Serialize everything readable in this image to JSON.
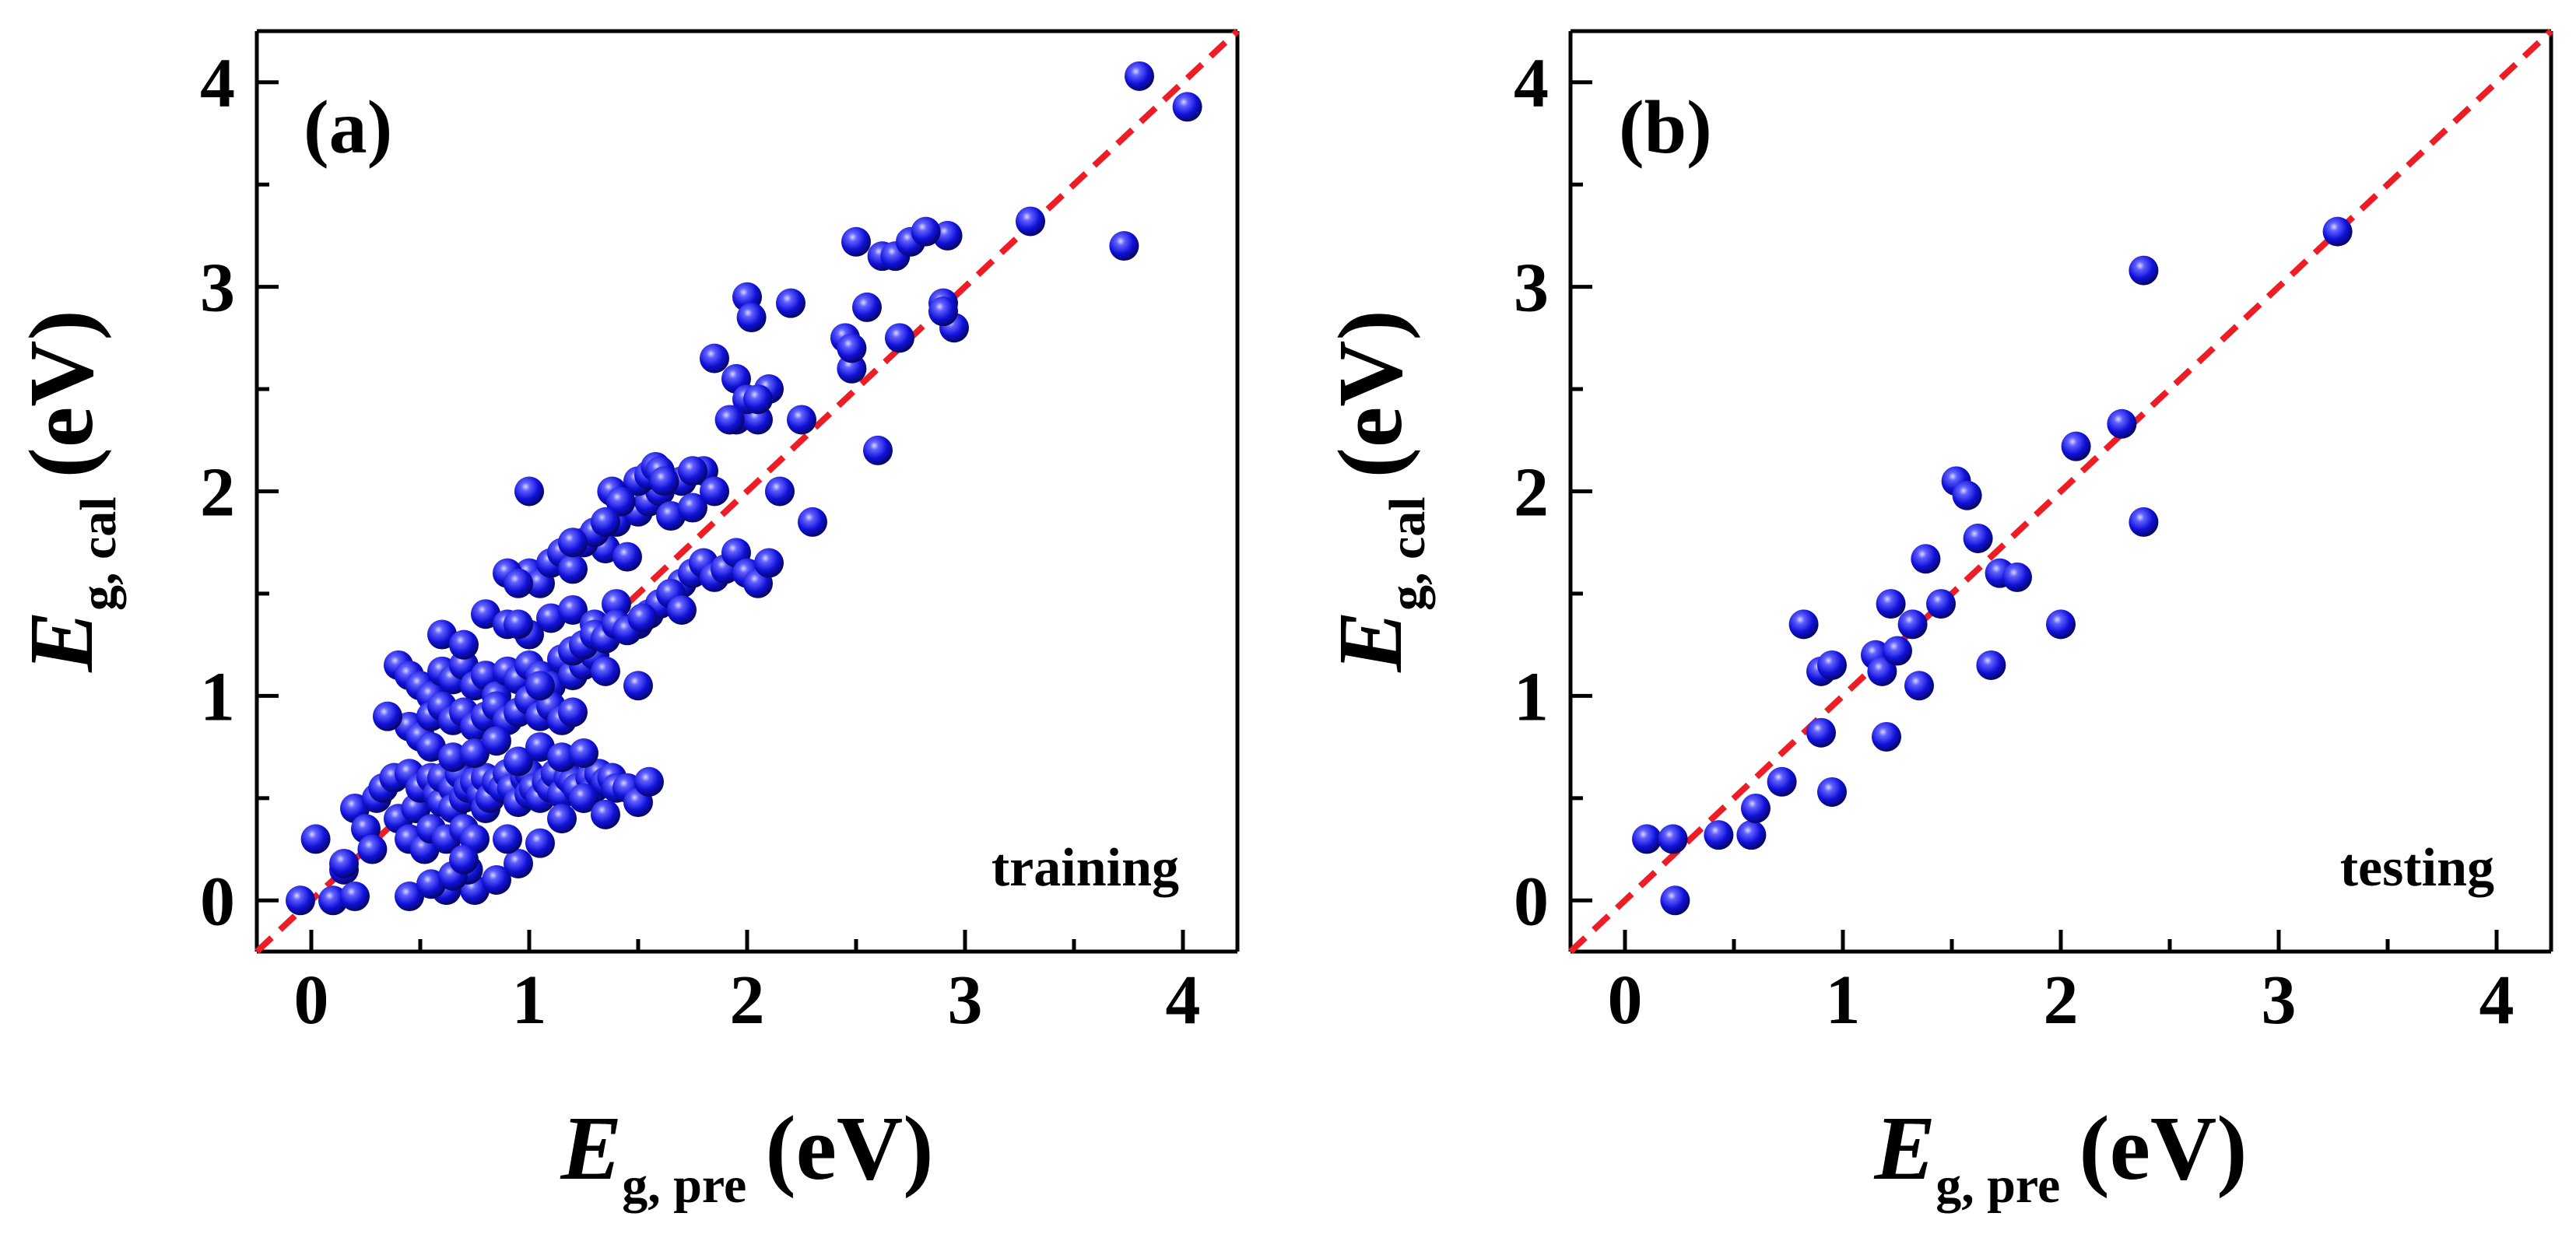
{
  "chart_data": [
    {
      "type": "scatter",
      "panel_label": "(a)",
      "annotation": "training",
      "xlabel": {
        "symbol": "E",
        "subscript": "g, pre",
        "unit": "(eV)"
      },
      "ylabel": {
        "symbol": "E",
        "subscript": "g, cal",
        "unit": "(eV)"
      },
      "xlim": [
        -0.25,
        4.25
      ],
      "ylim": [
        -0.25,
        4.25
      ],
      "xticks": [
        0,
        1,
        2,
        3,
        4
      ],
      "yticks": [
        0,
        1,
        2,
        3,
        4
      ],
      "reference_line": {
        "style": "dashed",
        "slope": 1,
        "intercept": 0
      },
      "colors": {
        "marker": "#1010d8",
        "marker_highlight": "#d8d8ff",
        "reference_line": "#ee1c24"
      },
      "series": [
        {
          "name": "training",
          "x": [
            -0.05,
            0.02,
            0.1,
            0.15,
            0.2,
            0.25,
            0.2,
            0.15,
            0.28,
            0.3,
            0.33,
            0.38,
            0.4,
            0.45,
            0.45,
            0.48,
            0.5,
            0.52,
            0.55,
            0.55,
            0.58,
            0.6,
            0.6,
            0.62,
            0.65,
            0.65,
            0.68,
            0.7,
            0.7,
            0.72,
            0.75,
            0.75,
            0.78,
            0.8,
            0.8,
            0.82,
            0.85,
            0.88,
            0.9,
            0.92,
            0.95,
            0.98,
            1.0,
            1.0,
            1.02,
            1.05,
            1.08,
            1.1,
            1.12,
            1.15,
            1.18,
            1.2,
            1.22,
            1.25,
            1.28,
            1.3,
            1.32,
            1.35,
            1.38,
            1.4,
            0.4,
            0.45,
            0.5,
            0.55,
            0.6,
            0.65,
            0.7,
            0.75,
            0.8,
            0.85,
            0.9,
            0.95,
            1.0,
            1.05,
            1.1,
            1.15,
            1.2,
            1.25,
            1.3,
            1.35,
            0.45,
            0.5,
            0.55,
            0.6,
            0.65,
            0.7,
            0.75,
            0.8,
            0.85,
            0.9,
            0.95,
            1.0,
            1.05,
            1.1,
            1.15,
            1.2,
            0.35,
            0.6,
            0.7,
            0.8,
            0.9,
            1.0,
            1.1,
            1.2,
            1.3,
            1.4,
            0.55,
            0.65,
            0.75,
            0.85,
            0.95,
            1.05,
            1.15,
            1.25,
            0.75,
            0.85,
            0.95,
            1.05,
            1.15,
            1.25,
            1.35,
            1.45,
            1.5,
            1.55,
            0.62,
            0.72,
            0.45,
            0.55,
            0.65,
            0.7,
            1.0,
            1.05,
            1.1,
            1.15,
            1.2,
            1.25,
            1.3,
            1.35,
            1.4,
            1.45,
            1.5,
            1.55,
            1.6,
            1.65,
            1.7,
            1.75,
            1.8,
            1.85,
            1.6,
            1.65,
            1.7,
            1.75,
            1.8,
            1.85,
            1.9,
            1.95,
            2.0,
            2.05,
            2.1,
            1.5,
            1.55,
            1.6,
            1.65,
            1.7,
            1.2,
            1.25,
            1.3,
            1.35,
            1.4,
            1.45,
            0.9,
            0.95,
            1.0,
            1.05,
            1.95,
            2.05,
            2.1,
            2.15,
            2.0,
            2.02,
            1.85,
            1.95,
            2.25,
            2.3,
            2.45,
            2.48,
            2.5,
            2.55,
            2.62,
            2.68,
            2.7,
            2.75,
            2.9,
            2.92,
            2.95,
            3.3,
            2.0,
            2.05,
            2.2,
            1.92,
            1.75,
            1.5,
            1.55,
            1.58,
            1.6,
            1.62,
            1.38,
            1.42,
            1.25,
            1.3,
            1.35,
            1.2,
            2.6,
            2.48,
            2.9,
            2.82,
            3.73,
            3.8,
            4.02,
            0.9,
            0.95,
            1.5,
            1.52
          ],
          "y": [
            0.0,
            0.3,
            0.0,
            0.15,
            0.45,
            0.35,
            0.02,
            0.18,
            0.25,
            0.5,
            0.55,
            0.6,
            0.4,
            0.62,
            0.3,
            0.45,
            0.55,
            0.25,
            0.6,
            0.35,
            0.52,
            0.48,
            0.6,
            0.3,
            0.55,
            0.45,
            0.62,
            0.35,
            0.5,
            0.55,
            0.3,
            0.58,
            0.52,
            0.6,
            0.45,
            0.5,
            0.58,
            0.55,
            0.62,
            0.55,
            0.48,
            0.6,
            0.62,
            0.52,
            0.55,
            0.5,
            0.58,
            0.55,
            0.62,
            0.52,
            0.6,
            0.58,
            0.55,
            0.5,
            0.6,
            0.55,
            0.62,
            0.58,
            0.6,
            0.55,
            1.15,
            1.1,
            1.05,
            1.0,
            1.12,
            1.08,
            1.15,
            1.05,
            1.1,
            1.0,
            1.12,
            1.08,
            1.15,
            1.1,
            1.05,
            1.18,
            1.1,
            1.15,
            1.2,
            1.12,
            0.85,
            0.8,
            0.9,
            0.95,
            0.88,
            0.92,
            0.85,
            0.9,
            0.95,
            0.88,
            0.92,
            0.98,
            0.9,
            0.95,
            0.88,
            0.92,
            0.9,
            1.3,
            1.25,
            1.4,
            1.35,
            1.3,
            1.38,
            1.42,
            1.35,
            1.45,
            0.75,
            0.7,
            0.72,
            0.78,
            0.68,
            0.75,
            0.7,
            0.72,
            0.05,
            0.1,
            0.18,
            0.28,
            0.4,
            0.5,
            0.42,
            0.55,
            0.48,
            0.58,
            0.05,
            0.15,
            0.02,
            0.08,
            0.12,
            0.2,
            1.6,
            1.55,
            1.65,
            1.7,
            1.62,
            1.75,
            1.8,
            1.72,
            1.85,
            1.68,
            1.9,
            1.95,
            2.0,
            1.88,
            2.05,
            1.92,
            2.1,
            2.0,
            1.45,
            1.5,
            1.55,
            1.6,
            1.65,
            1.58,
            1.62,
            1.7,
            1.6,
            1.55,
            1.65,
            1.35,
            1.4,
            1.45,
            1.5,
            1.42,
            1.22,
            1.25,
            1.3,
            1.28,
            1.35,
            1.32,
            1.6,
            1.55,
            2.0,
            1.05,
            2.35,
            2.35,
            2.5,
            2.0,
            2.95,
            2.85,
            2.65,
            2.55,
            2.35,
            1.85,
            2.75,
            2.6,
            3.22,
            2.9,
            3.15,
            3.15,
            2.75,
            3.22,
            2.92,
            3.25,
            2.8,
            3.32,
            2.45,
            2.45,
            2.92,
            2.35,
            2.1,
            2.05,
            2.08,
            2.12,
            2.1,
            2.05,
            2.0,
            1.95,
            1.75,
            1.8,
            1.85,
            1.75,
            2.2,
            2.7,
            2.88,
            3.27,
            3.2,
            4.03,
            3.88,
            0.3,
            1.35,
            1.05,
            1.38
          ]
        }
      ]
    },
    {
      "type": "scatter",
      "panel_label": "(b)",
      "annotation": "testing",
      "xlabel": {
        "symbol": "E",
        "subscript": "g, pre",
        "unit": "(eV)"
      },
      "ylabel": {
        "symbol": "E",
        "subscript": "g, cal",
        "unit": "(eV)"
      },
      "xlim": [
        -0.25,
        4.25
      ],
      "ylim": [
        -0.25,
        4.25
      ],
      "xticks": [
        0,
        1,
        2,
        3,
        4
      ],
      "yticks": [
        0,
        1,
        2,
        3,
        4
      ],
      "reference_line": {
        "style": "dashed",
        "slope": 1,
        "intercept": 0
      },
      "colors": {
        "marker": "#1010d8",
        "marker_highlight": "#d8d8ff",
        "reference_line": "#ee1c24"
      },
      "series": [
        {
          "name": "testing",
          "x": [
            0.1,
            0.22,
            0.23,
            0.43,
            0.58,
            0.6,
            0.72,
            0.82,
            0.9,
            0.9,
            0.95,
            0.95,
            1.15,
            1.18,
            1.2,
            1.22,
            1.25,
            1.32,
            1.35,
            1.38,
            1.45,
            1.52,
            1.57,
            1.62,
            1.68,
            1.72,
            1.8,
            2.0,
            2.07,
            2.28,
            2.38,
            2.38,
            3.27
          ],
          "y": [
            0.3,
            0.3,
            0.0,
            0.32,
            0.32,
            0.45,
            0.58,
            1.35,
            0.82,
            1.12,
            1.15,
            0.53,
            1.2,
            1.12,
            0.8,
            1.45,
            1.22,
            1.35,
            1.05,
            1.67,
            1.45,
            2.05,
            1.98,
            1.77,
            1.15,
            1.6,
            1.58,
            1.35,
            2.22,
            2.33,
            1.85,
            3.08,
            3.27
          ]
        }
      ]
    }
  ]
}
